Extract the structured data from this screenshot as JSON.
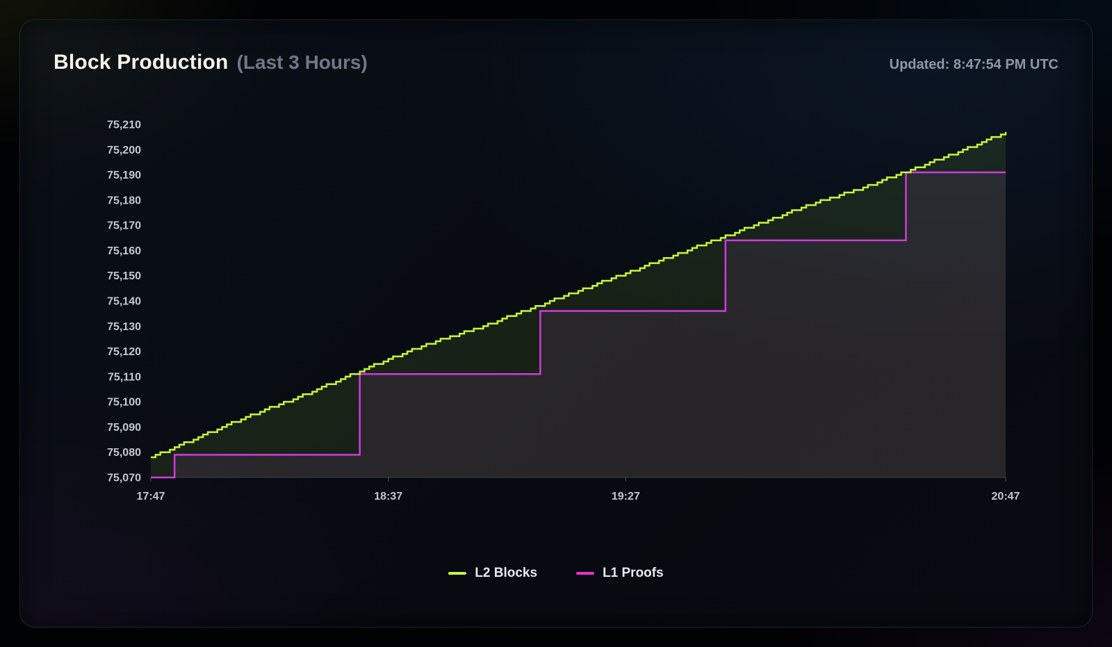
{
  "header": {
    "title": "Block Production",
    "subtitle": "(Last 3 Hours)",
    "updated": "Updated: 8:47:54 PM UTC"
  },
  "legend": [
    {
      "label": "L2 Blocks",
      "color": "#c9f63b"
    },
    {
      "label": "L1 Proofs",
      "color": "#f42ad9"
    }
  ],
  "chart_data": {
    "type": "line",
    "title": "Block Production (Last 3 Hours)",
    "xlabel": "",
    "ylabel": "",
    "grid": false,
    "legend_position": "bottom-center",
    "x_axis": {
      "total_minutes": 180,
      "ticks": [
        {
          "t": 0,
          "label": "17:47"
        },
        {
          "t": 50,
          "label": "18:37"
        },
        {
          "t": 100,
          "label": "19:27"
        },
        {
          "t": 180,
          "label": "20:47"
        }
      ]
    },
    "y_axis": {
      "min": 75070,
      "max": 75210,
      "tick_step": 10
    },
    "series": [
      {
        "name": "L2 Blocks",
        "color": "#c9f63b",
        "fill": "rgba(154,222,62,0.11)",
        "style": "step",
        "dense_steps": true,
        "points": [
          [
            0,
            75078
          ],
          [
            10,
            75086
          ],
          [
            20,
            75094
          ],
          [
            30,
            75101
          ],
          [
            40,
            75109
          ],
          [
            50,
            75117
          ],
          [
            60,
            75124
          ],
          [
            70,
            75130
          ],
          [
            80,
            75137
          ],
          [
            90,
            75144
          ],
          [
            100,
            75151
          ],
          [
            110,
            75158
          ],
          [
            120,
            75165
          ],
          [
            130,
            75172
          ],
          [
            140,
            75179
          ],
          [
            150,
            75185
          ],
          [
            160,
            75192
          ],
          [
            170,
            75199
          ],
          [
            180,
            75207
          ]
        ]
      },
      {
        "name": "L1 Proofs",
        "color": "#cf3bdd",
        "fill": "rgba(186,85,211,0.10)",
        "style": "step",
        "dense_steps": false,
        "points": [
          [
            0,
            75070
          ],
          [
            5,
            75079
          ],
          [
            44,
            75111
          ],
          [
            82,
            75136
          ],
          [
            121,
            75164
          ],
          [
            159,
            75191
          ],
          [
            180,
            75191
          ]
        ]
      }
    ]
  }
}
